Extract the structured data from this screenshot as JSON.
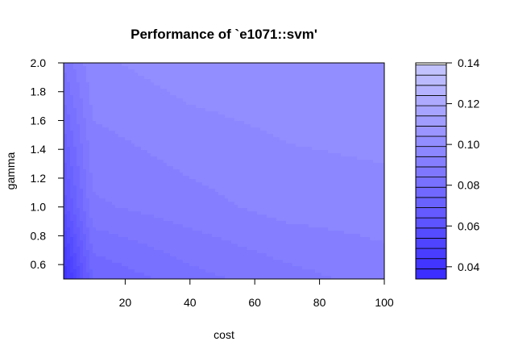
{
  "chart_data": {
    "type": "heatmap",
    "title": "Performance of `e1071::svm'",
    "xlabel": "cost",
    "ylabel": "gamma",
    "xlim": [
      1,
      100
    ],
    "ylim": [
      0.5,
      2.0
    ],
    "x_ticks": [
      "20",
      "40",
      "60",
      "80",
      "100"
    ],
    "x_tick_values": [
      20,
      40,
      60,
      80,
      100
    ],
    "y_ticks": [
      "0.6",
      "0.8",
      "1.0",
      "1.2",
      "1.4",
      "1.6",
      "1.8",
      "2.0"
    ],
    "y_tick_values": [
      0.6,
      0.8,
      1.0,
      1.2,
      1.4,
      1.6,
      1.8,
      2.0
    ],
    "cost_grid": [
      1,
      10,
      40,
      70,
      100
    ],
    "gamma_grid": [
      0.5,
      1.0,
      2.0
    ],
    "error_values": [
      [
        0.035,
        0.072,
        0.08,
        0.085,
        0.089
      ],
      [
        0.058,
        0.086,
        0.09,
        0.094,
        0.095
      ],
      [
        0.083,
        0.096,
        0.1,
        0.101,
        0.102
      ]
    ],
    "legend": {
      "levels": [
        0.034,
        0.14
      ],
      "step": 0.005,
      "ticks": [
        "0.04",
        "0.06",
        "0.08",
        "0.10",
        "0.12",
        "0.14"
      ],
      "tick_values": [
        0.04,
        0.06,
        0.08,
        0.1,
        0.12,
        0.14
      ]
    },
    "colors": {
      "low": "#3b2eff",
      "high": "#c9c9ff",
      "axis": "#000000"
    }
  }
}
